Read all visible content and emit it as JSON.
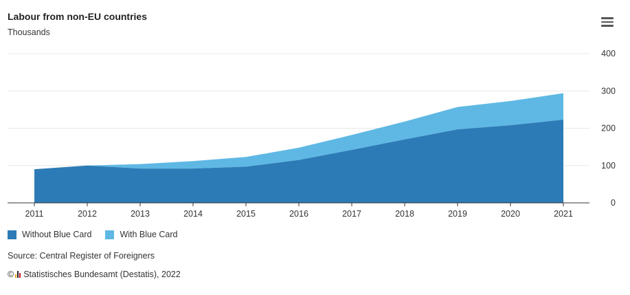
{
  "header": {
    "title": "Labour from non-EU countries",
    "subtitle": "Thousands",
    "menu_icon": "hamburger-menu-icon"
  },
  "colors": {
    "without_blue_card": "#2c7bb6",
    "with_blue_card": "#5fb8e4",
    "grid": "#e8e8e8",
    "axis": "#333333"
  },
  "chart_data": {
    "type": "area",
    "stacked": true,
    "categories": [
      "2011",
      "2012",
      "2013",
      "2014",
      "2015",
      "2016",
      "2017",
      "2018",
      "2019",
      "2020",
      "2021"
    ],
    "series": [
      {
        "name": "Without Blue Card",
        "values": [
          90,
          100,
          92,
          92,
          97,
          115,
          142,
          170,
          197,
          208,
          223
        ]
      },
      {
        "name": "With Blue Card",
        "values": [
          0,
          0,
          12,
          20,
          26,
          33,
          40,
          48,
          60,
          65,
          71
        ]
      }
    ],
    "y_ticks": [
      "0",
      "100",
      "200",
      "300",
      "400"
    ],
    "ylim": [
      0,
      400
    ],
    "y_axis_side": "right",
    "grid": true,
    "legend_position": "bottom-left"
  },
  "footer": {
    "source": "Source: Central Register of Foreigners",
    "copyright_symbol": "©",
    "copyright_text": "Statistisches Bundesamt (Destatis), 2022"
  }
}
